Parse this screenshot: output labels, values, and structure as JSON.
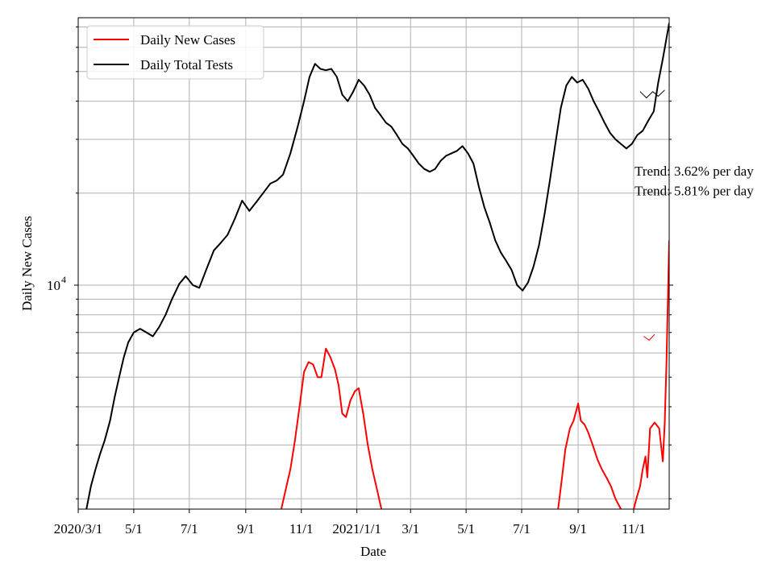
{
  "chart_data": {
    "type": "line",
    "title": "",
    "xlabel": "Date",
    "ylabel": "Daily New Cases",
    "y_scale": "log",
    "ylim": [
      1850,
      75000
    ],
    "xlim": [
      "2020-03-01",
      "2021-12-10"
    ],
    "grid": true,
    "legend_position": "top-left",
    "x_ticks": [
      {
        "date": "2020-03-01",
        "label": "2020/3/1"
      },
      {
        "date": "2020-05-01",
        "label": "5/1"
      },
      {
        "date": "2020-07-01",
        "label": "7/1"
      },
      {
        "date": "2020-09-01",
        "label": "9/1"
      },
      {
        "date": "2020-11-01",
        "label": "11/1"
      },
      {
        "date": "2021-01-01",
        "label": "2021/1/1"
      },
      {
        "date": "2021-03-01",
        "label": "3/1"
      },
      {
        "date": "2021-05-01",
        "label": "5/1"
      },
      {
        "date": "2021-07-01",
        "label": "7/1"
      },
      {
        "date": "2021-09-01",
        "label": "9/1"
      },
      {
        "date": "2021-11-01",
        "label": "11/1"
      }
    ],
    "y_major_tick": {
      "value": 10000,
      "label_base": "10",
      "label_exp": "4"
    },
    "y_minor_ticks": [
      2000,
      3000,
      4000,
      5000,
      6000,
      7000,
      8000,
      9000,
      20000,
      30000,
      40000,
      50000,
      60000,
      70000
    ],
    "series": [
      {
        "name": "Daily New Cases",
        "color": "#ff0000",
        "points": [
          [
            "2020-10-10",
            1850
          ],
          [
            "2020-10-15",
            2150
          ],
          [
            "2020-10-20",
            2500
          ],
          [
            "2020-10-25",
            3100
          ],
          [
            "2020-10-30",
            4000
          ],
          [
            "2020-11-04",
            5200
          ],
          [
            "2020-11-09",
            5600
          ],
          [
            "2020-11-14",
            5500
          ],
          [
            "2020-11-19",
            5000
          ],
          [
            "2020-11-23",
            5000
          ],
          [
            "2020-11-28",
            6200
          ],
          [
            "2020-12-03",
            5800
          ],
          [
            "2020-12-08",
            5300
          ],
          [
            "2020-12-12",
            4700
          ],
          [
            "2020-12-16",
            3800
          ],
          [
            "2020-12-20",
            3700
          ],
          [
            "2020-12-25",
            4200
          ],
          [
            "2020-12-30",
            4500
          ],
          [
            "2021-01-03",
            4600
          ],
          [
            "2021-01-08",
            3800
          ],
          [
            "2021-01-13",
            3000
          ],
          [
            "2021-01-18",
            2500
          ],
          [
            "2021-01-23",
            2150
          ],
          [
            "2021-01-28",
            1850
          ]
        ]
      },
      {
        "name": "Daily Total Tests",
        "color": "#000000",
        "points": [
          [
            "2020-03-10",
            1850
          ],
          [
            "2020-03-15",
            2200
          ],
          [
            "2020-03-20",
            2500
          ],
          [
            "2020-03-25",
            2800
          ],
          [
            "2020-03-30",
            3100
          ],
          [
            "2020-04-05",
            3600
          ],
          [
            "2020-04-10",
            4300
          ],
          [
            "2020-04-15",
            5000
          ],
          [
            "2020-04-20",
            5800
          ],
          [
            "2020-04-25",
            6500
          ],
          [
            "2020-05-01",
            7000
          ],
          [
            "2020-05-08",
            7200
          ],
          [
            "2020-05-15",
            7000
          ],
          [
            "2020-05-22",
            6800
          ],
          [
            "2020-05-29",
            7300
          ],
          [
            "2020-06-05",
            8000
          ],
          [
            "2020-06-12",
            9000
          ],
          [
            "2020-06-20",
            10100
          ],
          [
            "2020-06-27",
            10700
          ],
          [
            "2020-07-05",
            10000
          ],
          [
            "2020-07-12",
            9800
          ],
          [
            "2020-07-20",
            11300
          ],
          [
            "2020-07-28",
            13000
          ],
          [
            "2020-08-05",
            13800
          ],
          [
            "2020-08-12",
            14600
          ],
          [
            "2020-08-20",
            16500
          ],
          [
            "2020-08-28",
            18900
          ],
          [
            "2020-09-05",
            17500
          ],
          [
            "2020-09-12",
            18600
          ],
          [
            "2020-09-20",
            20000
          ],
          [
            "2020-09-28",
            21500
          ],
          [
            "2020-10-05",
            22000
          ],
          [
            "2020-10-12",
            23000
          ],
          [
            "2020-10-20",
            27000
          ],
          [
            "2020-10-28",
            33000
          ],
          [
            "2020-11-04",
            40000
          ],
          [
            "2020-11-10",
            48000
          ],
          [
            "2020-11-16",
            53000
          ],
          [
            "2020-11-22",
            51000
          ],
          [
            "2020-11-28",
            50500
          ],
          [
            "2020-12-04",
            51000
          ],
          [
            "2020-12-10",
            48000
          ],
          [
            "2020-12-16",
            42000
          ],
          [
            "2020-12-22",
            40000
          ],
          [
            "2020-12-28",
            43000
          ],
          [
            "2021-01-03",
            47000
          ],
          [
            "2021-01-09",
            45000
          ],
          [
            "2021-01-15",
            42000
          ],
          [
            "2021-01-21",
            38000
          ],
          [
            "2021-01-27",
            36000
          ],
          [
            "2021-02-02",
            34000
          ],
          [
            "2021-02-08",
            33000
          ],
          [
            "2021-02-14",
            31000
          ],
          [
            "2021-02-20",
            29000
          ],
          [
            "2021-02-26",
            28000
          ],
          [
            "2021-03-04",
            26500
          ],
          [
            "2021-03-10",
            25000
          ],
          [
            "2021-03-16",
            24000
          ],
          [
            "2021-03-22",
            23500
          ],
          [
            "2021-03-28",
            24000
          ],
          [
            "2021-04-03",
            25500
          ],
          [
            "2021-04-09",
            26500
          ],
          [
            "2021-04-15",
            27000
          ],
          [
            "2021-04-21",
            27500
          ],
          [
            "2021-04-27",
            28500
          ],
          [
            "2021-05-03",
            27000
          ],
          [
            "2021-05-09",
            25000
          ],
          [
            "2021-05-15",
            21000
          ],
          [
            "2021-05-21",
            18000
          ],
          [
            "2021-05-27",
            16000
          ],
          [
            "2021-06-02",
            14000
          ],
          [
            "2021-06-08",
            12800
          ],
          [
            "2021-06-14",
            12000
          ],
          [
            "2021-06-20",
            11200
          ],
          [
            "2021-06-26",
            10000
          ],
          [
            "2021-07-02",
            9600
          ],
          [
            "2021-07-08",
            10200
          ],
          [
            "2021-07-14",
            11500
          ],
          [
            "2021-07-20",
            13500
          ],
          [
            "2021-07-26",
            17000
          ],
          [
            "2021-08-01",
            22000
          ],
          [
            "2021-08-07",
            29000
          ],
          [
            "2021-08-13",
            38000
          ],
          [
            "2021-08-19",
            45000
          ],
          [
            "2021-08-25",
            48000
          ],
          [
            "2021-08-31",
            46000
          ],
          [
            "2021-09-06",
            47000
          ],
          [
            "2021-09-12",
            44000
          ],
          [
            "2021-09-18",
            40000
          ],
          [
            "2021-09-24",
            37000
          ],
          [
            "2021-09-30",
            34000
          ],
          [
            "2021-10-06",
            31500
          ],
          [
            "2021-10-12",
            30000
          ],
          [
            "2021-10-18",
            29000
          ],
          [
            "2021-10-24",
            28000
          ],
          [
            "2021-10-30",
            29000
          ],
          [
            "2021-11-05",
            31000
          ],
          [
            "2021-11-11",
            32000
          ],
          [
            "2021-11-17",
            34500
          ],
          [
            "2021-11-23",
            37000
          ],
          [
            "2021-11-28",
            46000
          ],
          [
            "2021-12-03",
            55000
          ],
          [
            "2021-12-10",
            72000
          ]
        ]
      }
    ],
    "extra_segments": [
      {
        "color": "#ff0000",
        "points": [
          [
            "2021-08-10",
            1850
          ],
          [
            "2021-08-14",
            2300
          ],
          [
            "2021-08-18",
            2900
          ],
          [
            "2021-08-23",
            3400
          ],
          [
            "2021-08-27",
            3600
          ],
          [
            "2021-09-01",
            4100
          ],
          [
            "2021-09-04",
            3600
          ],
          [
            "2021-09-08",
            3500
          ],
          [
            "2021-09-12",
            3300
          ],
          [
            "2021-09-17",
            3000
          ],
          [
            "2021-09-22",
            2700
          ],
          [
            "2021-09-27",
            2500
          ],
          [
            "2021-10-02",
            2350
          ],
          [
            "2021-10-07",
            2200
          ],
          [
            "2021-10-12",
            2000
          ],
          [
            "2021-10-18",
            1850
          ]
        ]
      },
      {
        "color": "#ff0000",
        "points": [
          [
            "2021-11-01",
            1850
          ],
          [
            "2021-11-04",
            2000
          ],
          [
            "2021-11-08",
            2200
          ],
          [
            "2021-11-11",
            2500
          ],
          [
            "2021-11-14",
            2750
          ],
          [
            "2021-11-16",
            2350
          ],
          [
            "2021-11-19",
            3400
          ],
          [
            "2021-11-24",
            3550
          ],
          [
            "2021-11-29",
            3400
          ],
          [
            "2021-12-03",
            2650
          ],
          [
            "2021-12-05",
            3500
          ],
          [
            "2021-12-07",
            5500
          ],
          [
            "2021-12-10",
            14000
          ]
        ]
      }
    ],
    "trend_glyphs": [
      {
        "color": "#000000",
        "points": [
          [
            "2021-11-08",
            43000
          ],
          [
            "2021-11-15",
            41000
          ],
          [
            "2021-11-22",
            43000
          ],
          [
            "2021-11-28",
            41500
          ],
          [
            "2021-12-05",
            43500
          ]
        ]
      },
      {
        "color": "#ff0000",
        "points": [
          [
            "2021-11-12",
            6800
          ],
          [
            "2021-11-18",
            6600
          ],
          [
            "2021-11-24",
            6900
          ]
        ]
      }
    ],
    "annotations": [
      {
        "text": "Trend: 3.62% per day",
        "date": "2021-11-02",
        "value": 22800
      },
      {
        "text": "Trend: 5.81% per day",
        "date": "2021-11-02",
        "value": 19700
      }
    ]
  }
}
